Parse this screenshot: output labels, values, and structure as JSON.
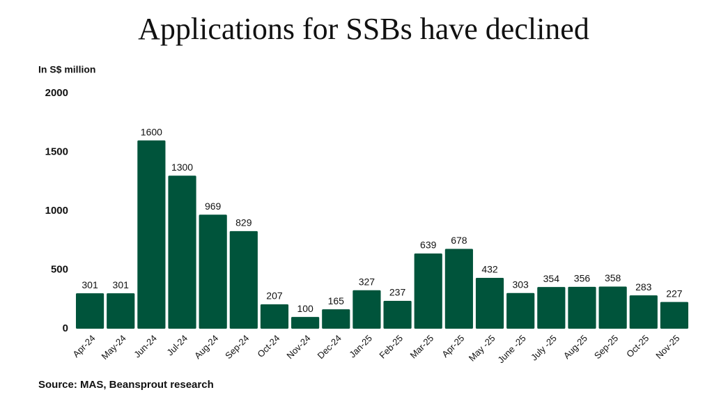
{
  "chart_data": {
    "type": "bar",
    "title": "Applications for SSBs have declined",
    "y_label": "In S$ million",
    "source": "Source: MAS, Beansprout research",
    "categories": [
      "Apr-24",
      "May-24",
      "Jun-24",
      "Jul-24",
      "Aug-24",
      "Sep-24",
      "Oct-24",
      "Nov-24",
      "Dec-24",
      "Jan-25",
      "Feb-25",
      "Mar-25",
      "Apr-25",
      "May -25",
      "June -25",
      "July -25",
      "Aug-25",
      "Sep-25",
      "Oct-25",
      "Nov-25"
    ],
    "values": [
      301,
      301,
      1600,
      1300,
      969,
      829,
      207,
      100,
      165,
      327,
      237,
      639,
      678,
      432,
      303,
      354,
      356,
      358,
      283,
      227
    ],
    "color": "#00543b",
    "ylim": [
      0,
      2000
    ],
    "yticks": [
      0,
      500,
      1000,
      1500,
      2000
    ],
    "grid": false
  }
}
